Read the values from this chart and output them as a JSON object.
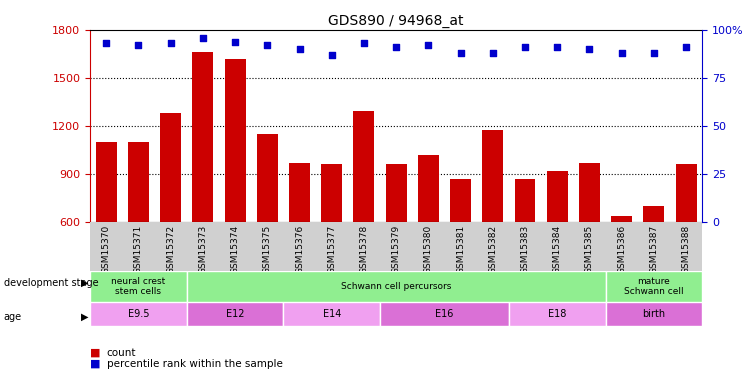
{
  "title": "GDS890 / 94968_at",
  "samples": [
    "GSM15370",
    "GSM15371",
    "GSM15372",
    "GSM15373",
    "GSM15374",
    "GSM15375",
    "GSM15376",
    "GSM15377",
    "GSM15378",
    "GSM15379",
    "GSM15380",
    "GSM15381",
    "GSM15382",
    "GSM15383",
    "GSM15384",
    "GSM15385",
    "GSM15386",
    "GSM15387",
    "GSM15388"
  ],
  "counts": [
    1100,
    1100,
    1280,
    1660,
    1620,
    1150,
    970,
    960,
    1295,
    960,
    1020,
    870,
    1175,
    870,
    920,
    970,
    640,
    700,
    960
  ],
  "percentiles": [
    93,
    92,
    93,
    96,
    94,
    92,
    90,
    87,
    93,
    91,
    92,
    88,
    88,
    91,
    91,
    90,
    88,
    88,
    91
  ],
  "bar_color": "#cc0000",
  "dot_color": "#0000cc",
  "ylim_left": [
    600,
    1800
  ],
  "ylim_right": [
    0,
    100
  ],
  "yticks_left": [
    600,
    900,
    1200,
    1500,
    1800
  ],
  "yticks_right": [
    0,
    25,
    50,
    75,
    100
  ],
  "ytick_labels_right": [
    "0",
    "25",
    "50",
    "75",
    "100%"
  ],
  "grid_values": [
    900,
    1200,
    1500
  ],
  "xtick_bg_color": "#d0d0d0",
  "dev_stage_row": [
    {
      "label": "neural crest\nstem cells",
      "start": 0,
      "end": 3,
      "color": "#90ee90"
    },
    {
      "label": "Schwann cell percursors",
      "start": 3,
      "end": 16,
      "color": "#90ee90"
    },
    {
      "label": "mature\nSchwann cell",
      "start": 16,
      "end": 19,
      "color": "#90ee90"
    }
  ],
  "age_row": [
    {
      "label": "E9.5",
      "start": 0,
      "end": 3,
      "color": "#f0a0f0"
    },
    {
      "label": "E12",
      "start": 3,
      "end": 6,
      "color": "#da70d6"
    },
    {
      "label": "E14",
      "start": 6,
      "end": 9,
      "color": "#f0a0f0"
    },
    {
      "label": "E16",
      "start": 9,
      "end": 13,
      "color": "#da70d6"
    },
    {
      "label": "E18",
      "start": 13,
      "end": 16,
      "color": "#f0a0f0"
    },
    {
      "label": "birth",
      "start": 16,
      "end": 19,
      "color": "#da70d6"
    }
  ],
  "plot_bg": "#ffffff",
  "legend_count_color": "#cc0000",
  "legend_dot_color": "#0000cc"
}
